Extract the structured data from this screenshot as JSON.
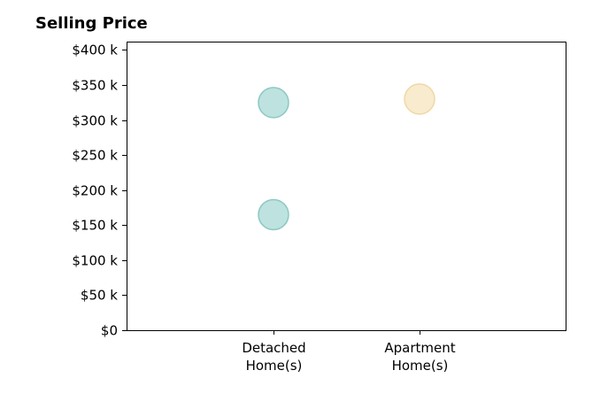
{
  "chart_data": {
    "type": "scatter",
    "title": "Selling Price",
    "xlabel": "",
    "ylabel": "",
    "categories": [
      "Detached\nHome(s)",
      "Apartment\nHome(s)"
    ],
    "ylim": [
      0,
      412000
    ],
    "yticks": [
      0,
      50000,
      100000,
      150000,
      200000,
      250000,
      300000,
      350000,
      400000
    ],
    "ytick_labels": [
      "$0",
      "$50 k",
      "$100 k",
      "$150 k",
      "$200 k",
      "$250 k",
      "$300 k",
      "$350 k",
      "$400 k"
    ],
    "grid": false,
    "points": [
      {
        "category": "Detached\nHome(s)",
        "value": 325000,
        "color": "#a8d8d4"
      },
      {
        "category": "Detached\nHome(s)",
        "value": 165000,
        "color": "#a8d8d4"
      },
      {
        "category": "Apartment\nHome(s)",
        "value": 330000,
        "color": "#f6e4bd"
      }
    ]
  }
}
